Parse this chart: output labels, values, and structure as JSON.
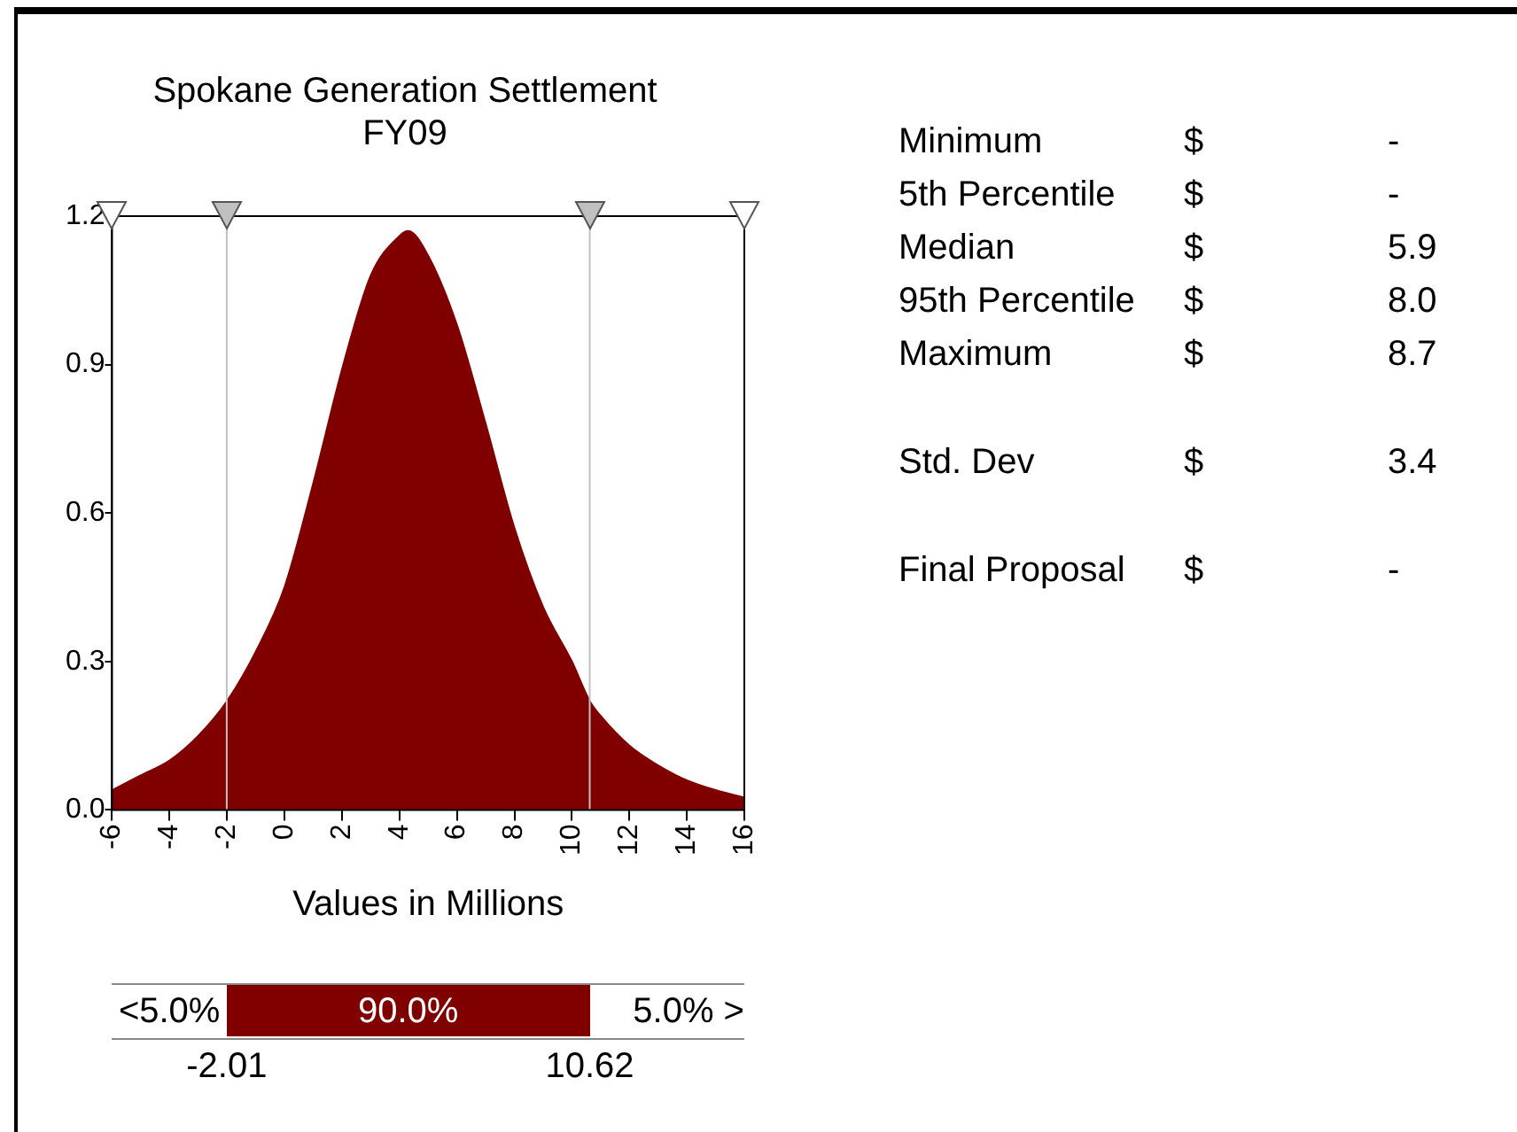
{
  "chart_data": {
    "type": "area",
    "title": "Spokane Generation Settlement\nFY09",
    "xlabel": "Values in Millions",
    "x": [
      -6,
      -5,
      -4,
      -3,
      -2,
      -1,
      0,
      1,
      2,
      3,
      4,
      4.3,
      5,
      6,
      7,
      8,
      9,
      10,
      10.62,
      11,
      12,
      13,
      14,
      15,
      16
    ],
    "values": [
      0.04,
      0.07,
      0.1,
      0.15,
      0.22,
      0.32,
      0.45,
      0.66,
      0.89,
      1.08,
      1.16,
      1.17,
      1.12,
      0.98,
      0.78,
      0.57,
      0.41,
      0.3,
      0.22,
      0.19,
      0.13,
      0.09,
      0.06,
      0.04,
      0.025
    ],
    "color": "#800000",
    "xlim": [
      -6,
      16
    ],
    "xticks": [
      -6,
      -4,
      -2,
      0,
      2,
      4,
      6,
      8,
      10,
      12,
      14,
      16
    ],
    "ylim": [
      0,
      1.2
    ],
    "yticks": [
      {
        "value": 0,
        "label": "0.0"
      },
      0.3,
      0.6,
      0.9,
      1.2
    ],
    "grid": false,
    "legend": false,
    "marker": "none",
    "ref_lines": [
      {
        "axis": "x",
        "value": -2.01,
        "color": "#c0c0c0"
      },
      {
        "axis": "x",
        "value": 10.62,
        "color": "#c0c0c0"
      }
    ],
    "annotations": [
      "<5.0%",
      "90.0%",
      "5.0% >",
      "-2.01",
      "10.62",
      "Minimum",
      "$",
      "-",
      "5th Percentile",
      "$",
      "-",
      "Median",
      "$",
      "5.9",
      "95th Percentile",
      "$",
      "8.0",
      "Maximum",
      "$",
      "8.7",
      "Std. Dev",
      "$",
      "3.4",
      "Final Proposal",
      "$",
      "-"
    ]
  }
}
